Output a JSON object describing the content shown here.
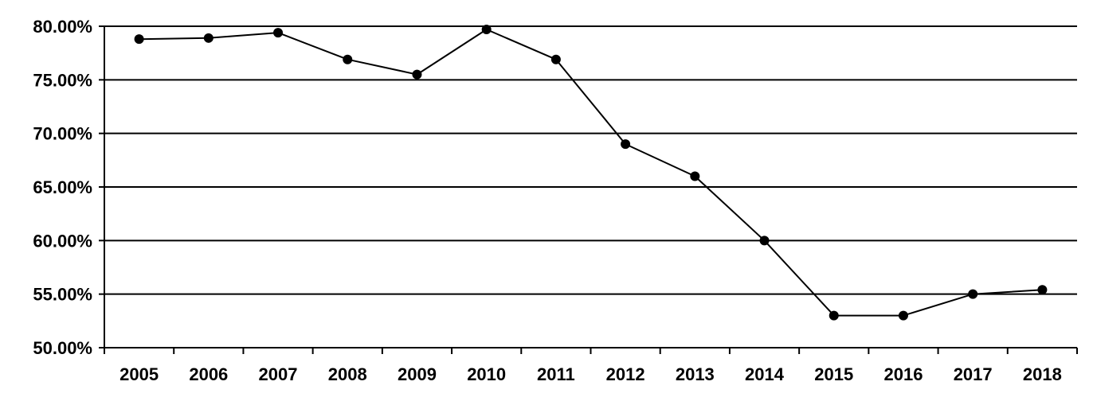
{
  "chart_data": {
    "type": "line",
    "title": "",
    "xlabel": "",
    "ylabel": "",
    "categories": [
      "2005",
      "2006",
      "2007",
      "2008",
      "2009",
      "2010",
      "2011",
      "2012",
      "2013",
      "2014",
      "2015",
      "2016",
      "2017",
      "2018"
    ],
    "series": [
      {
        "values": [
          78.8,
          78.9,
          79.4,
          76.9,
          75.5,
          79.7,
          76.9,
          69.0,
          66.0,
          60.0,
          53.0,
          53.0,
          55.0,
          55.4
        ]
      }
    ],
    "ylim": [
      50,
      80
    ],
    "y_ticks": [
      {
        "value": 50,
        "label": "50.00%"
      },
      {
        "value": 55,
        "label": "55.00%"
      },
      {
        "value": 60,
        "label": "60.00%"
      },
      {
        "value": 65,
        "label": "65.00%"
      },
      {
        "value": 70,
        "label": "70.00%"
      },
      {
        "value": 75,
        "label": "75.00%"
      },
      {
        "value": 80,
        "label": "80.00%"
      }
    ],
    "grid": "horizontal",
    "legend": "none",
    "colors": {
      "line": "#000000",
      "marker": "#000000",
      "grid": "#000000"
    }
  }
}
